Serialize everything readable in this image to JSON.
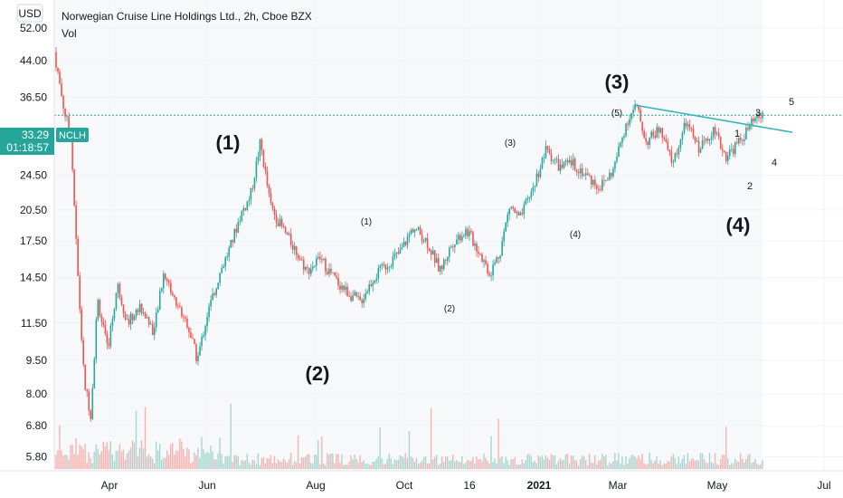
{
  "header": {
    "currency": "USD",
    "title": "Norwegian Cruise Line Holdings Ltd., 2h, Cboe BZX",
    "indicator": "Vol",
    "price_tag_value": "33.29",
    "price_tag_symbol": "NCLH",
    "countdown": "01:18:57"
  },
  "colors": {
    "up": "#26a69a",
    "down": "#ef5350",
    "trendline": "#2bb3bd",
    "price_tag": "#26a69a",
    "volume_up": "#a7d6cf",
    "volume_down": "#f5b3b1"
  },
  "chart_data": {
    "type": "candlestick",
    "title": "Norwegian Cruise Line Holdings Ltd., 2h, Cboe BZX",
    "y_scale": "log",
    "ylim": [
      5.4,
      60
    ],
    "y_ticks": [
      "5.80",
      "6.80",
      "8.00",
      "9.50",
      "11.50",
      "14.50",
      "17.50",
      "20.50",
      "24.50",
      "36.50",
      "44.00",
      "52.00"
    ],
    "y_tick_values": [
      5.8,
      6.8,
      8.0,
      9.5,
      11.5,
      14.5,
      17.5,
      20.5,
      24.5,
      36.5,
      44.0,
      52.0
    ],
    "x_ticks": [
      "Apr",
      "Jun",
      "Aug",
      "Oct",
      "16",
      "2021",
      "Mar",
      "May",
      "Jul"
    ],
    "last_price": 33.29,
    "price_path": [
      {
        "t": 0.0,
        "p": 46
      },
      {
        "t": 0.03,
        "p": 34
      },
      {
        "t": 0.05,
        "p": 30
      },
      {
        "t": 0.07,
        "p": 15
      },
      {
        "t": 0.09,
        "p": 8.5
      },
      {
        "t": 0.11,
        "p": 7.2
      },
      {
        "t": 0.13,
        "p": 13
      },
      {
        "t": 0.16,
        "p": 10
      },
      {
        "t": 0.19,
        "p": 14
      },
      {
        "t": 0.22,
        "p": 11.5
      },
      {
        "t": 0.26,
        "p": 12.5
      },
      {
        "t": 0.3,
        "p": 11
      },
      {
        "t": 0.33,
        "p": 15
      },
      {
        "t": 0.36,
        "p": 13
      },
      {
        "t": 0.4,
        "p": 11.5
      },
      {
        "t": 0.43,
        "p": 9.5
      },
      {
        "t": 0.46,
        "p": 12
      },
      {
        "t": 0.5,
        "p": 15
      },
      {
        "t": 0.53,
        "p": 17
      },
      {
        "t": 0.56,
        "p": 20
      },
      {
        "t": 0.59,
        "p": 22
      },
      {
        "t": 0.62,
        "p": 29
      },
      {
        "t": 0.65,
        "p": 21
      },
      {
        "t": 0.68,
        "p": 19
      },
      {
        "t": 0.72,
        "p": 17
      },
      {
        "t": 0.76,
        "p": 15
      },
      {
        "t": 0.8,
        "p": 16
      },
      {
        "t": 0.84,
        "p": 14.5
      },
      {
        "t": 0.88,
        "p": 13.5
      },
      {
        "t": 0.92,
        "p": 12.8
      },
      {
        "t": 0.96,
        "p": 14.5
      },
      {
        "t": 1.0,
        "p": 15.5
      },
      {
        "t": 1.04,
        "p": 16.5
      },
      {
        "t": 1.08,
        "p": 18.8
      },
      {
        "t": 1.12,
        "p": 17.5
      },
      {
        "t": 1.16,
        "p": 15
      },
      {
        "t": 1.2,
        "p": 17.5
      },
      {
        "t": 1.24,
        "p": 18.5
      },
      {
        "t": 1.28,
        "p": 16.5
      },
      {
        "t": 1.31,
        "p": 14.8
      },
      {
        "t": 1.34,
        "p": 16.5
      },
      {
        "t": 1.37,
        "p": 21
      },
      {
        "t": 1.4,
        "p": 19.5
      },
      {
        "t": 1.44,
        "p": 23
      },
      {
        "t": 1.48,
        "p": 28
      },
      {
        "t": 1.52,
        "p": 25.5
      },
      {
        "t": 1.56,
        "p": 26
      },
      {
        "t": 1.6,
        "p": 24.5
      },
      {
        "t": 1.64,
        "p": 23
      },
      {
        "t": 1.68,
        "p": 25
      },
      {
        "t": 1.72,
        "p": 32
      },
      {
        "t": 1.75,
        "p": 35
      },
      {
        "t": 1.78,
        "p": 29
      },
      {
        "t": 1.82,
        "p": 31
      },
      {
        "t": 1.86,
        "p": 26
      },
      {
        "t": 1.9,
        "p": 32
      },
      {
        "t": 1.94,
        "p": 28
      },
      {
        "t": 1.98,
        "p": 31
      },
      {
        "t": 2.02,
        "p": 27
      },
      {
        "t": 2.06,
        "p": 29
      },
      {
        "t": 2.1,
        "p": 32
      },
      {
        "t": 2.13,
        "p": 33.3
      }
    ],
    "trendline": [
      {
        "t": 1.75,
        "p": 35
      },
      {
        "t": 2.22,
        "p": 30.5
      }
    ],
    "annotations": [
      {
        "label": "(1)",
        "size": "large"
      },
      {
        "label": "(2)",
        "size": "large"
      },
      {
        "label": "(3)",
        "size": "large"
      },
      {
        "label": "(4)",
        "size": "large"
      },
      {
        "label": "(1)",
        "size": "medium"
      },
      {
        "label": "(2)",
        "size": "medium"
      },
      {
        "label": "(3)",
        "size": "medium"
      },
      {
        "label": "(4)",
        "size": "medium"
      },
      {
        "label": "(5)",
        "size": "medium"
      },
      {
        "label": "1",
        "size": "small"
      },
      {
        "label": "2",
        "size": "small"
      },
      {
        "label": "3",
        "size": "small"
      },
      {
        "label": "4",
        "size": "small"
      },
      {
        "label": "5",
        "size": "small"
      }
    ]
  }
}
